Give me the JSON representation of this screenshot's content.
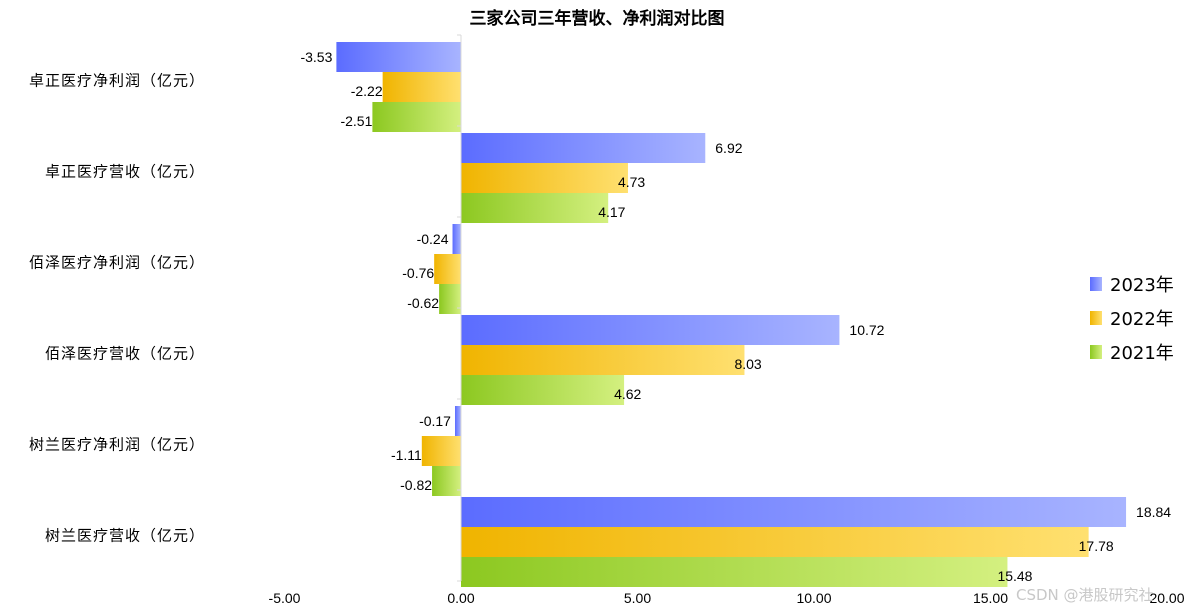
{
  "chart_data": {
    "type": "bar",
    "orientation": "horizontal",
    "title": "三家公司三年营收、净利润对比图",
    "categories": [
      "卓正医疗净利润（亿元）",
      "卓正医疗营收（亿元）",
      "佰泽医疗净利润（亿元）",
      "佰泽医疗营收（亿元）",
      "树兰医疗净利润（亿元）",
      "树兰医疗营收（亿元）"
    ],
    "series": [
      {
        "name": "2023年",
        "values": [
          -3.53,
          6.92,
          -0.24,
          10.72,
          -0.17,
          18.84
        ],
        "color_from": "#5b6cff",
        "color_to": "#a8b4ff"
      },
      {
        "name": "2022年",
        "values": [
          -2.22,
          4.73,
          -0.76,
          8.03,
          -1.11,
          17.78
        ],
        "color_from": "#f0b400",
        "color_to": "#ffe070"
      },
      {
        "name": "2021年",
        "values": [
          -2.51,
          4.17,
          -0.62,
          4.62,
          -0.82,
          15.48
        ],
        "color_from": "#8cc820",
        "color_to": "#d4f080"
      }
    ],
    "labels": {
      "0": [
        "-3.53",
        "6.92",
        "-0.24",
        "10.72",
        "-0.17",
        "18.84"
      ],
      "1": [
        "-2.22",
        "4.73",
        "-0.76",
        "8.03",
        "-1.11",
        "17.78"
      ],
      "2": [
        "-2.51",
        "4.17",
        "-0.62",
        "4.62",
        "-0.82",
        "15.48"
      ]
    },
    "xlim": [
      -5,
      20
    ],
    "xticks": [
      -5,
      0,
      5,
      10,
      15,
      20
    ],
    "xtick_labels": [
      "-5.00",
      "0.00",
      "5.00",
      "10.00",
      "15.00",
      "20.00"
    ],
    "grid": false,
    "legend_position": "right"
  },
  "watermark": "CSDN @港股研究社"
}
